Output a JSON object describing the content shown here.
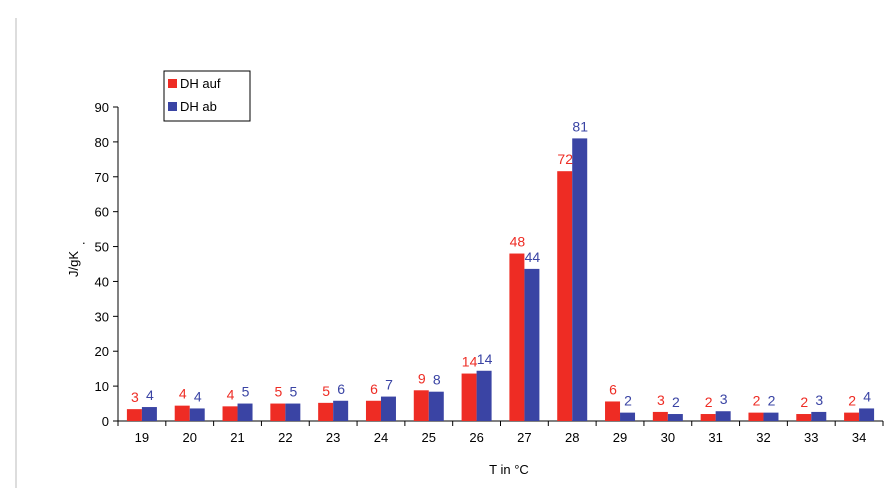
{
  "chart_data": {
    "type": "bar",
    "title": "",
    "xlabel": "T in °C",
    "ylabel": "J/gK",
    "ylim": [
      0,
      90
    ],
    "yticks": [
      0,
      10,
      20,
      30,
      40,
      50,
      60,
      70,
      80,
      90
    ],
    "categories": [
      "19",
      "20",
      "21",
      "22",
      "23",
      "24",
      "25",
      "26",
      "27",
      "28",
      "29",
      "30",
      "31",
      "32",
      "33",
      "34"
    ],
    "series": [
      {
        "name": "DH auf",
        "color": "#ee2c24",
        "values": [
          3.4,
          4.4,
          4.2,
          5,
          5.2,
          5.8,
          8.8,
          13.6,
          48,
          71.6,
          5.6,
          2.6,
          2,
          2.4,
          2,
          2.4
        ],
        "labels": [
          "3",
          "4",
          "4",
          "5",
          "5",
          "6",
          "9",
          "14",
          "48",
          "72",
          "6",
          "3",
          "2",
          "2",
          "2",
          "2"
        ]
      },
      {
        "name": "DH ab",
        "color": "#3a44a4",
        "values": [
          4,
          3.6,
          5,
          5,
          5.8,
          7,
          8.4,
          14.4,
          43.6,
          81,
          2.4,
          2,
          2.8,
          2.4,
          2.6,
          3.6
        ],
        "labels": [
          "4",
          "4",
          "5",
          "5",
          "6",
          "7",
          "8",
          "14",
          "44",
          "81",
          "2",
          "2",
          "3",
          "2",
          "3",
          "4"
        ]
      }
    ],
    "grid": false,
    "legend_position": "top-left"
  }
}
